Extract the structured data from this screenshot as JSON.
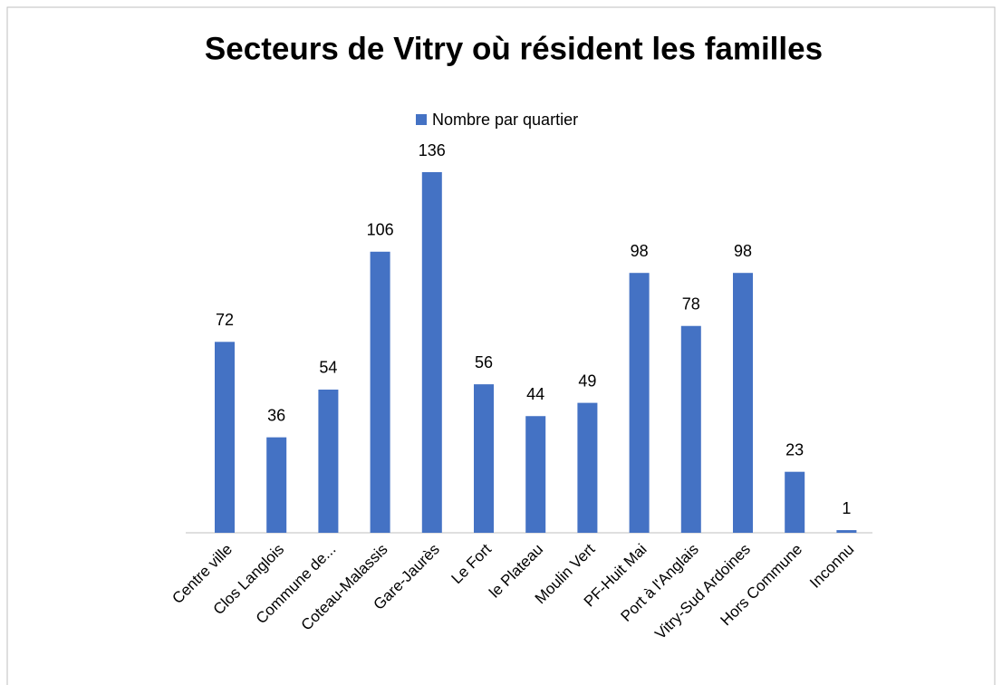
{
  "chart_data": {
    "type": "bar",
    "title": "Secteurs de Vitry où résident les familles",
    "categories": [
      "Centre ville",
      "Clos Langlois",
      "Commune de...",
      "Coteau-Malassis",
      "Gare-Jaurès",
      "Le Fort",
      "le Plateau",
      "Moulin Vert",
      "PF-Huit Mai",
      "Port à l'Anglais",
      "Vitry-Sud Ardoines",
      "Hors Commune",
      "Inconnu"
    ],
    "series": [
      {
        "name": "Nombre par quartier",
        "color": "#4472c4",
        "values": [
          72,
          36,
          54,
          106,
          136,
          56,
          44,
          49,
          98,
          78,
          98,
          23,
          1
        ]
      }
    ],
    "legend": "top"
  }
}
